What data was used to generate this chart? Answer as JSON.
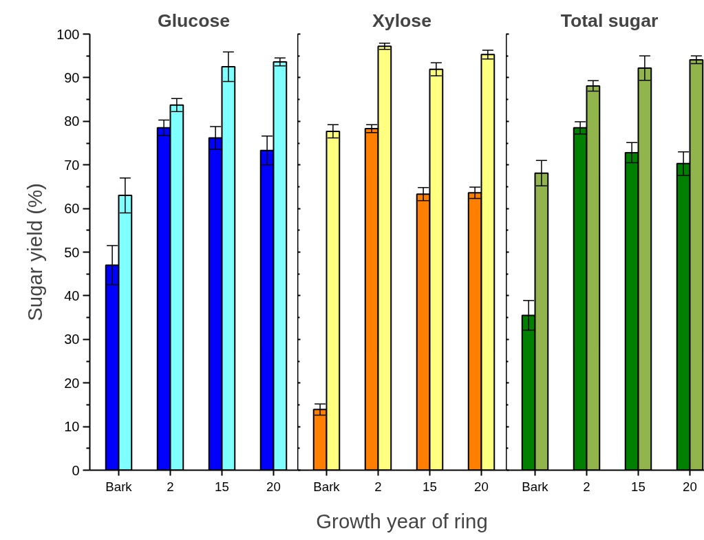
{
  "chart_data": [
    {
      "type": "bar",
      "title": "Glucose",
      "ylabel": "Sugar yield (%)",
      "categories": [
        "Bark",
        "2",
        "15",
        "20"
      ],
      "ylim": [
        0,
        100
      ],
      "yticks": [
        0,
        10,
        20,
        30,
        40,
        50,
        60,
        70,
        80,
        90,
        100
      ],
      "series": [
        {
          "color": "#0000ff",
          "values": [
            47.0,
            78.5,
            76.2,
            73.3
          ],
          "errors": [
            4.5,
            1.8,
            2.6,
            3.3
          ]
        },
        {
          "color": "#80ffff",
          "values": [
            63.0,
            83.7,
            92.5,
            93.6
          ],
          "errors": [
            4.0,
            1.5,
            3.4,
            0.9
          ]
        }
      ]
    },
    {
      "type": "bar",
      "title": "Xylose",
      "xlabel": "Growth year of ring",
      "categories": [
        "Bark",
        "2",
        "15",
        "20"
      ],
      "ylim": [
        0,
        100
      ],
      "yticks": [
        0,
        10,
        20,
        30,
        40,
        50,
        60,
        70,
        80,
        90,
        100
      ],
      "tick_labels": "x",
      "series": [
        {
          "color": "#ff8000",
          "values": [
            13.9,
            78.3,
            63.3,
            63.6
          ],
          "errors": [
            1.3,
            0.9,
            1.5,
            1.3
          ]
        },
        {
          "color": "#ffff80",
          "values": [
            77.7,
            97.2,
            91.9,
            95.3
          ],
          "errors": [
            1.5,
            0.7,
            1.5,
            1.0
          ]
        }
      ]
    },
    {
      "type": "bar",
      "title": "Total sugar",
      "categories": [
        "Bark",
        "2",
        "15",
        "20"
      ],
      "ylim": [
        0,
        100
      ],
      "yticks": [
        0,
        10,
        20,
        30,
        40,
        50,
        60,
        70,
        80,
        90,
        100
      ],
      "tick_labels": "x",
      "series": [
        {
          "color": "#008000",
          "values": [
            35.5,
            78.5,
            72.8,
            70.3
          ],
          "errors": [
            3.4,
            1.4,
            2.3,
            2.7
          ]
        },
        {
          "color": "#92b44c",
          "values": [
            68.1,
            88.1,
            92.2,
            94.1
          ],
          "errors": [
            2.9,
            1.2,
            2.8,
            0.9
          ]
        }
      ]
    }
  ]
}
